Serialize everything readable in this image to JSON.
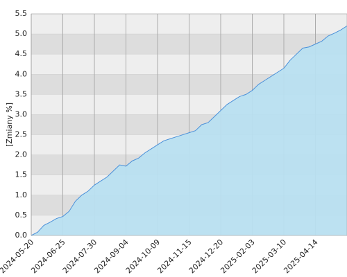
{
  "chart_data": {
    "type": "area",
    "y_label": "[Zmiany %]",
    "categories": [
      "2024-05-20",
      null,
      null,
      null,
      null,
      "2024-06-25",
      null,
      null,
      null,
      null,
      "2024-07-30",
      null,
      null,
      null,
      null,
      "2024-09-04",
      null,
      null,
      null,
      null,
      "2024-10-09",
      null,
      null,
      null,
      null,
      "2024-11-15",
      null,
      null,
      null,
      null,
      "2024-12-20",
      null,
      null,
      null,
      null,
      "2025-02-03",
      null,
      null,
      null,
      null,
      "2025-03-10",
      null,
      null,
      null,
      null,
      "2025-04-14",
      null,
      null,
      null,
      null,
      null
    ],
    "values": [
      0,
      0.08,
      0.25,
      0.33,
      0.42,
      0.47,
      0.6,
      0.85,
      1.0,
      1.1,
      1.25,
      1.35,
      1.45,
      1.6,
      1.75,
      1.72,
      1.85,
      1.92,
      2.05,
      2.15,
      2.25,
      2.35,
      2.4,
      2.45,
      2.5,
      2.55,
      2.6,
      2.75,
      2.8,
      2.95,
      3.1,
      3.25,
      3.35,
      3.45,
      3.5,
      3.6,
      3.75,
      3.85,
      3.95,
      4.05,
      4.15,
      4.35,
      4.5,
      4.65,
      4.68,
      4.75,
      4.82,
      4.95,
      5.02,
      5.1,
      5.2
    ],
    "color": "#4a90d9",
    "fill": "#b8dff0",
    "ylim": [
      0,
      5.5
    ],
    "yticks": [
      {
        "value": 0,
        "label": "0.0"
      },
      0.5,
      {
        "value": 1,
        "label": "1.0"
      },
      1.5,
      {
        "value": 2,
        "label": "2.0"
      },
      2.5,
      {
        "value": 3,
        "label": "3.0"
      },
      3.5,
      {
        "value": 4,
        "label": "4.0"
      },
      4.5,
      {
        "value": 5,
        "label": "5.0"
      },
      5.5
    ],
    "grid": true
  }
}
